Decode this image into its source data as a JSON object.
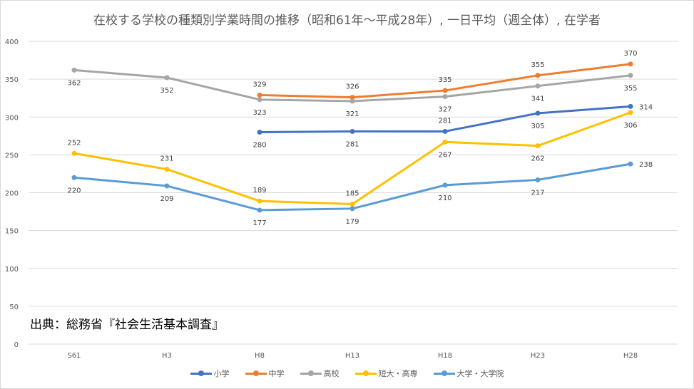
{
  "chart_data": {
    "type": "line",
    "title": "在校する学校の種類別学業時間の推移（昭和61年～平成28年）, 一日平均（週全体）, 在学者",
    "categories": [
      "S61",
      "H3",
      "H8",
      "H13",
      "H18",
      "H23",
      "H28"
    ],
    "ylim": [
      0,
      400
    ],
    "yticks": [
      0,
      50,
      100,
      150,
      200,
      250,
      300,
      350,
      400
    ],
    "grid": true,
    "legend_position": "bottom",
    "series": [
      {
        "name": "小学",
        "color": "#4472C4",
        "values": [
          null,
          null,
          280,
          281,
          281,
          305,
          314
        ],
        "label_pos": [
          "",
          "",
          "below",
          "below",
          "above",
          "below",
          "right"
        ]
      },
      {
        "name": "中学",
        "color": "#ED7D31",
        "values": [
          null,
          null,
          329,
          326,
          335,
          355,
          370
        ],
        "label_pos": [
          "",
          "",
          "above",
          "above",
          "above",
          "above",
          "above"
        ]
      },
      {
        "name": "高校",
        "color": "#A5A5A5",
        "values": [
          362,
          352,
          323,
          321,
          327,
          341,
          355
        ],
        "label_pos": [
          "below",
          "below",
          "below",
          "below",
          "below",
          "below",
          "below"
        ]
      },
      {
        "name": "短大・高専",
        "color": "#FFC000",
        "values": [
          252,
          231,
          189,
          185,
          267,
          262,
          306
        ],
        "label_pos": [
          "above",
          "above",
          "above",
          "above",
          "below",
          "below",
          "below"
        ]
      },
      {
        "name": "大学・大学院",
        "color": "#5B9BD5",
        "values": [
          220,
          209,
          177,
          179,
          210,
          217,
          238
        ],
        "label_pos": [
          "below",
          "below",
          "below",
          "below",
          "below",
          "below",
          "right"
        ]
      }
    ]
  },
  "source_note": "出典：総務省『社会生活基本調査』"
}
